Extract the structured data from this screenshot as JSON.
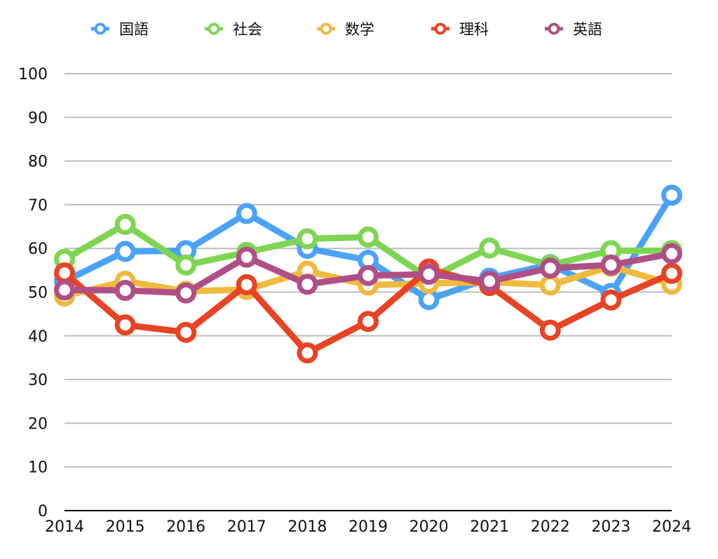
{
  "chart_data": {
    "type": "line",
    "title": "",
    "xlabel": "",
    "ylabel": "",
    "ylim": [
      0,
      100
    ],
    "yticks": [
      "0",
      "10",
      "20",
      "30",
      "40",
      "50",
      "60",
      "70",
      "80",
      "90",
      "100"
    ],
    "grid": true,
    "legend_position": "top",
    "categories": [
      "2014",
      "2015",
      "2016",
      "2017",
      "2018",
      "2019",
      "2020",
      "2021",
      "2022",
      "2023",
      "2024"
    ],
    "series": [
      {
        "name": "国語",
        "color": "#4aa3f7",
        "values": [
          52.5,
          59.3,
          59.5,
          68.0,
          60.0,
          57.3,
          48.3,
          53.2,
          56.3,
          49.7,
          72.2
        ]
      },
      {
        "name": "社会",
        "color": "#7ed552",
        "values": [
          57.5,
          65.5,
          56.2,
          59.1,
          62.2,
          62.6,
          53.1,
          60.1,
          56.2,
          59.5,
          59.5
        ]
      },
      {
        "name": "数学",
        "color": "#f0ba3e",
        "values": [
          49.1,
          52.5,
          50.2,
          50.6,
          54.8,
          51.6,
          52.0,
          52.3,
          51.6,
          55.9,
          51.8
        ]
      },
      {
        "name": "理科",
        "color": "#e84324",
        "values": [
          54.4,
          42.5,
          40.8,
          51.7,
          36.1,
          43.3,
          55.3,
          51.5,
          41.3,
          48.2,
          54.3
        ]
      },
      {
        "name": "英語",
        "color": "#b04f86",
        "values": [
          50.5,
          50.4,
          49.8,
          58.0,
          51.8,
          53.8,
          54.1,
          52.5,
          55.5,
          56.2,
          58.8
        ]
      }
    ]
  }
}
